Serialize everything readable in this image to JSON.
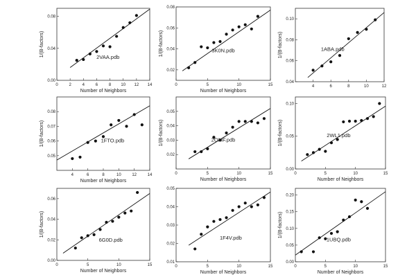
{
  "chart_data": [
    {
      "type": "scatter",
      "annotation": "2VAA.pdb",
      "xlabel": "Number of Neighbors",
      "ylabel": "1/(B-factors)",
      "xlim": [
        0,
        14
      ],
      "ylim": [
        0.0,
        0.09
      ],
      "xticks": [
        0,
        2,
        4,
        6,
        8,
        10,
        12,
        14
      ],
      "yticks": [
        0.0,
        0.04,
        0.08
      ],
      "ytick_labels": [
        "0.00",
        "0.04",
        "0.08"
      ],
      "points": [
        [
          3,
          0.025
        ],
        [
          4,
          0.026
        ],
        [
          5,
          0.033
        ],
        [
          6,
          0.036
        ],
        [
          7,
          0.043
        ],
        [
          8,
          0.042
        ],
        [
          9,
          0.055
        ],
        [
          10,
          0.066
        ],
        [
          11,
          0.072
        ],
        [
          12,
          0.081
        ]
      ],
      "fit": [
        [
          2,
          0.016
        ],
        [
          14,
          0.089
        ]
      ],
      "marker_color": "#111111"
    },
    {
      "type": "scatter",
      "annotation": "3K0N.pdb",
      "xlabel": "Number of Neighbors",
      "ylabel": "1/(B-factors)",
      "xlim": [
        0,
        15
      ],
      "ylim": [
        0.01,
        0.08
      ],
      "xticks": [
        0,
        5,
        10,
        15
      ],
      "yticks": [
        0.02,
        0.04,
        0.06,
        0.08
      ],
      "ytick_labels": [
        "0.02",
        "0.04",
        "0.06",
        "0.08"
      ],
      "points": [
        [
          2,
          0.022
        ],
        [
          3,
          0.027
        ],
        [
          4,
          0.042
        ],
        [
          5,
          0.041
        ],
        [
          6,
          0.046
        ],
        [
          7,
          0.047
        ],
        [
          8,
          0.054
        ],
        [
          9,
          0.058
        ],
        [
          10,
          0.061
        ],
        [
          11,
          0.063
        ],
        [
          12,
          0.059
        ],
        [
          13,
          0.071
        ]
      ],
      "fit": [
        [
          1,
          0.019
        ],
        [
          15,
          0.077
        ]
      ],
      "marker_color": "#111111"
    },
    {
      "type": "scatter",
      "annotation": "1ABA.pdb",
      "xlabel": "",
      "ylabel": "1/(B-factors)",
      "xlim": [
        2,
        12
      ],
      "ylim": [
        0.04,
        0.11
      ],
      "xticks": [
        4,
        6,
        8,
        10,
        12
      ],
      "yticks": [
        0.04,
        0.06,
        0.08,
        0.1
      ],
      "ytick_labels": [
        "0.04",
        "0.06",
        "0.08",
        "0.10"
      ],
      "points": [
        [
          4,
          0.051
        ],
        [
          5,
          0.055
        ],
        [
          6,
          0.059
        ],
        [
          7,
          0.065
        ],
        [
          8,
          0.081
        ],
        [
          9,
          0.087
        ],
        [
          10,
          0.09
        ],
        [
          11,
          0.099
        ]
      ],
      "fit": [
        [
          3.4,
          0.044
        ],
        [
          12,
          0.106
        ]
      ],
      "marker_color": "#111111"
    },
    {
      "type": "scatter",
      "annotation": "1FTO.pdb",
      "xlabel": "Number of Neighbors",
      "ylabel": "1/(B-factors)",
      "xlim": [
        2,
        14
      ],
      "ylim": [
        0.04,
        0.09
      ],
      "xticks": [
        4,
        6,
        8,
        10,
        12,
        14
      ],
      "yticks": [
        0.05,
        0.06,
        0.07,
        0.08
      ],
      "ytick_labels": [
        "0.05",
        "0.06",
        "0.07",
        "0.08"
      ],
      "points": [
        [
          4,
          0.048
        ],
        [
          5,
          0.049
        ],
        [
          6,
          0.059
        ],
        [
          7,
          0.06
        ],
        [
          8,
          0.063
        ],
        [
          9,
          0.071
        ],
        [
          10,
          0.074
        ],
        [
          11,
          0.07
        ],
        [
          12,
          0.078
        ],
        [
          13,
          0.071
        ]
      ],
      "fit": [
        [
          2,
          0.047
        ],
        [
          14,
          0.084
        ]
      ],
      "marker_color": "#111111"
    },
    {
      "type": "scatter",
      "annotation": "2OMF.pdb",
      "xlabel": "Number of Neighbors",
      "ylabel": "1/(B-factors)",
      "xlim": [
        0,
        15
      ],
      "ylim": [
        0.01,
        0.06
      ],
      "xticks": [
        0,
        5,
        10,
        15
      ],
      "yticks": [
        0.02,
        0.03,
        0.04,
        0.05
      ],
      "ytick_labels": [
        "0.02",
        "0.03",
        "0.04",
        "0.05"
      ],
      "points": [
        [
          3,
          0.022
        ],
        [
          4,
          0.022
        ],
        [
          5,
          0.024
        ],
        [
          6,
          0.032
        ],
        [
          7,
          0.03
        ],
        [
          8,
          0.035
        ],
        [
          9,
          0.039
        ],
        [
          10,
          0.043
        ],
        [
          11,
          0.043
        ],
        [
          12,
          0.043
        ],
        [
          13,
          0.042
        ],
        [
          14,
          0.045
        ]
      ],
      "fit": [
        [
          2,
          0.017
        ],
        [
          15,
          0.052
        ]
      ],
      "marker_color": "#111111"
    },
    {
      "type": "scatter",
      "annotation": "2WL1.pdb",
      "xlabel": "Number of Neighbors",
      "ylabel": "1/(B-factors)",
      "xlim": [
        0,
        15
      ],
      "ylim": [
        0.0,
        0.11
      ],
      "xticks": [
        0,
        5,
        10,
        15
      ],
      "yticks": [
        0.0,
        0.05,
        0.1
      ],
      "ytick_labels": [
        "0.00",
        "0.05",
        "0.10"
      ],
      "points": [
        [
          2,
          0.022
        ],
        [
          3,
          0.025
        ],
        [
          4,
          0.03
        ],
        [
          5,
          0.027
        ],
        [
          6,
          0.04
        ],
        [
          7,
          0.045
        ],
        [
          8,
          0.072
        ],
        [
          9,
          0.073
        ],
        [
          10,
          0.073
        ],
        [
          11,
          0.074
        ],
        [
          12,
          0.077
        ],
        [
          13,
          0.08
        ],
        [
          14,
          0.1
        ]
      ],
      "fit": [
        [
          1,
          0.012
        ],
        [
          15,
          0.096
        ]
      ],
      "marker_color": "#111111"
    },
    {
      "type": "scatter",
      "annotation": "6G0D.pdb",
      "xlabel": "Number of Neighbors",
      "ylabel": "1/(B-factors)",
      "xlim": [
        0,
        15
      ],
      "ylim": [
        0.0,
        0.07
      ],
      "xticks": [
        0,
        5,
        10,
        15
      ],
      "yticks": [
        0.0,
        0.02,
        0.04,
        0.06
      ],
      "ytick_labels": [
        "0.00",
        "0.02",
        "0.04",
        "0.06"
      ],
      "points": [
        [
          3,
          0.012
        ],
        [
          4,
          0.022
        ],
        [
          5,
          0.024
        ],
        [
          6,
          0.025
        ],
        [
          7,
          0.03
        ],
        [
          8,
          0.037
        ],
        [
          9,
          0.038
        ],
        [
          10,
          0.042
        ],
        [
          11,
          0.046
        ],
        [
          12,
          0.048
        ],
        [
          13,
          0.066
        ]
      ],
      "fit": [
        [
          1,
          0.007
        ],
        [
          15,
          0.065
        ]
      ],
      "marker_color": "#111111"
    },
    {
      "type": "scatter",
      "annotation": "1F4V.pdb",
      "xlabel": "Number of Neighbors",
      "ylabel": "",
      "xlim": [
        0,
        15
      ],
      "ylim": [
        0.01,
        0.05
      ],
      "xticks": [
        0,
        5,
        10,
        15
      ],
      "yticks": [
        0.01,
        0.02,
        0.03,
        0.04,
        0.05
      ],
      "ytick_labels": [
        "0.01",
        "0.02",
        "0.03",
        "0.04",
        "0.05"
      ],
      "points": [
        [
          3,
          0.017
        ],
        [
          4,
          0.025
        ],
        [
          5,
          0.029
        ],
        [
          6,
          0.032
        ],
        [
          7,
          0.033
        ],
        [
          8,
          0.034
        ],
        [
          9,
          0.038
        ],
        [
          10,
          0.04
        ],
        [
          11,
          0.042
        ],
        [
          12,
          0.04
        ],
        [
          13,
          0.041
        ],
        [
          14,
          0.045
        ]
      ],
      "fit": [
        [
          2,
          0.019
        ],
        [
          15,
          0.048
        ]
      ],
      "marker_color": "#111111"
    },
    {
      "type": "scatter",
      "annotation": "1UBQ.pdb",
      "xlabel": "Number of Neighbors",
      "ylabel": "1/(B-factors)",
      "xlim": [
        0,
        15
      ],
      "ylim": [
        0.0,
        0.22
      ],
      "xticks": [
        0,
        5,
        10,
        15
      ],
      "yticks": [
        0.0,
        0.05,
        0.1,
        0.15,
        0.2
      ],
      "ytick_labels": [
        "0.00",
        "0.05",
        "0.10",
        "0.15",
        "0.20"
      ],
      "points": [
        [
          1,
          0.03
        ],
        [
          3,
          0.03
        ],
        [
          4,
          0.072
        ],
        [
          5,
          0.069
        ],
        [
          6,
          0.085
        ],
        [
          7,
          0.09
        ],
        [
          8,
          0.125
        ],
        [
          9,
          0.135
        ],
        [
          10,
          0.185
        ],
        [
          11,
          0.18
        ],
        [
          12,
          0.16
        ]
      ],
      "fit": [
        [
          0,
          0.02
        ],
        [
          15,
          0.21
        ]
      ],
      "marker_color": "#111111"
    }
  ]
}
